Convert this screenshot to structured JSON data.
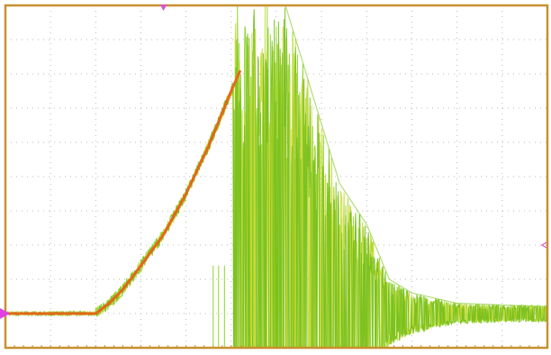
{
  "chart_data": {
    "type": "line",
    "title": "",
    "xlabel": "",
    "ylabel": "",
    "grid": true,
    "x_divisions": 12,
    "y_divisions": 10,
    "xlim": [
      0,
      12
    ],
    "ylim": [
      0,
      10
    ],
    "series": [
      {
        "color": "#e8621a",
        "points": [
          [
            0.0,
            1.0
          ],
          [
            2.0,
            1.0
          ],
          [
            2.3,
            1.3
          ],
          [
            2.6,
            1.7
          ],
          [
            3.0,
            2.4
          ],
          [
            3.5,
            3.3
          ],
          [
            4.0,
            4.5
          ],
          [
            4.5,
            5.9
          ],
          [
            5.0,
            7.5
          ],
          [
            5.2,
            8.1
          ]
        ]
      },
      {
        "color": "#7cc61e",
        "points": [
          [
            5.0,
            10.0
          ],
          [
            6.2,
            10.0
          ],
          [
            6.8,
            7.4
          ],
          [
            7.4,
            4.8
          ],
          [
            8.0,
            3.6
          ],
          [
            8.5,
            2.0
          ],
          [
            9.0,
            1.6
          ],
          [
            10.0,
            1.3
          ],
          [
            11.0,
            1.25
          ],
          [
            12.0,
            1.2
          ]
        ]
      }
    ],
    "markers": {
      "trigger_color": "#d858c8",
      "ground_color": "#e040e0",
      "frame_color": "#c8902e"
    }
  }
}
